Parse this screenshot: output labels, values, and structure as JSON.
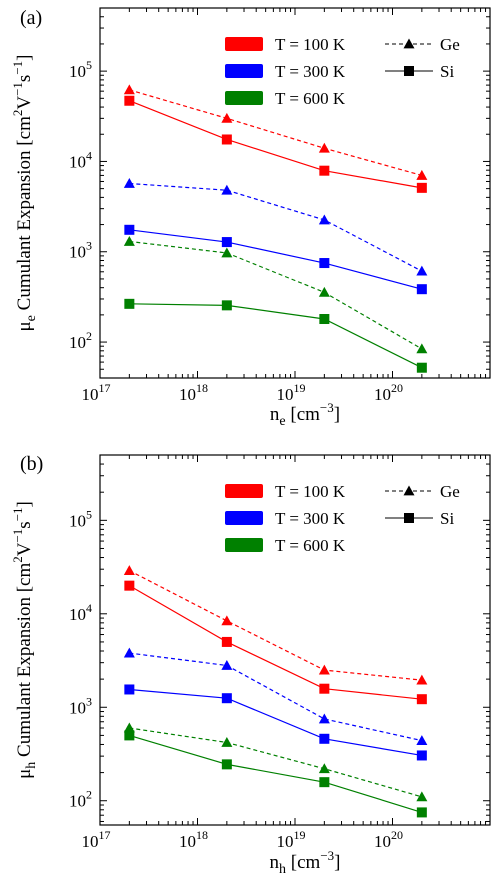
{
  "chart_data": [
    {
      "type": "line",
      "panel_label": "(a)",
      "xlabel_main": "n",
      "xlabel_sub": "e",
      "xlabel_unit_open": "[cm",
      "xlabel_unit_exp": "−3",
      "xlabel_unit_close": "]",
      "ylabel_main": "μ",
      "ylabel_sub": "e",
      "ylabel_text": "Cumulant Expansion [cm",
      "ylabel_exp1": "2",
      "ylabel_mid": "V",
      "ylabel_exp2": "−1",
      "ylabel_mid2": "s",
      "ylabel_exp3": "−1",
      "ylabel_close": "]",
      "x_scale": "log",
      "y_scale": "log",
      "xlim": [
        1e+17,
        1e+21
      ],
      "ylim": [
        40,
        500000
      ],
      "grid": false,
      "x_tick_labels": [
        "10",
        "10",
        "10",
        "10"
      ],
      "x_tick_exps": [
        "17",
        "18",
        "19",
        "20"
      ],
      "x_tick_values": [
        1e+17,
        1e+18,
        1e+19,
        1e+20
      ],
      "y_tick_labels": [
        "10",
        "10",
        "10",
        "10"
      ],
      "y_tick_exps": [
        "2",
        "3",
        "4",
        "5"
      ],
      "y_tick_values": [
        100,
        1000,
        10000,
        100000
      ],
      "x": [
        2e+17,
        2e+18,
        2e+19,
        2e+20
      ],
      "series": [
        {
          "material": "Ge",
          "temperature": "T = 100 K",
          "color": "#ff0000",
          "marker": "triangle",
          "dash": true,
          "values": [
            62000,
            30000,
            14000,
            7000
          ]
        },
        {
          "material": "Si",
          "temperature": "T = 100 K",
          "color": "#ff0000",
          "marker": "square",
          "dash": false,
          "values": [
            47000,
            17500,
            7900,
            5100
          ]
        },
        {
          "material": "Ge",
          "temperature": "T = 300 K",
          "color": "#0000ff",
          "marker": "triangle",
          "dash": true,
          "values": [
            5700,
            4800,
            2250,
            610
          ]
        },
        {
          "material": "Si",
          "temperature": "T = 300 K",
          "color": "#0000ff",
          "marker": "square",
          "dash": false,
          "values": [
            1750,
            1280,
            750,
            385
          ]
        },
        {
          "material": "Ge",
          "temperature": "T = 600 K",
          "color": "#008000",
          "marker": "triangle",
          "dash": true,
          "values": [
            1300,
            970,
            355,
            84
          ]
        },
        {
          "material": "Si",
          "temperature": "T = 600 K",
          "color": "#008000",
          "marker": "square",
          "dash": false,
          "values": [
            265,
            255,
            180,
            52
          ]
        }
      ],
      "legend_colors": [
        {
          "label": "T = 100 K",
          "color": "#ff0000"
        },
        {
          "label": "T = 300 K",
          "color": "#0000ff"
        },
        {
          "label": "T = 600 K",
          "color": "#008000"
        }
      ],
      "legend_markers": [
        {
          "label": "Ge",
          "marker": "triangle",
          "dash": true
        },
        {
          "label": "Si",
          "marker": "square",
          "dash": false
        }
      ],
      "legend_position": "top-right"
    },
    {
      "type": "line",
      "panel_label": "(b)",
      "xlabel_main": "n",
      "xlabel_sub": "h",
      "xlabel_unit_open": "[cm",
      "xlabel_unit_exp": "−3",
      "xlabel_unit_close": "]",
      "ylabel_main": "μ",
      "ylabel_sub": "h",
      "ylabel_text": "Cumulant Expansion [cm",
      "ylabel_exp1": "2",
      "ylabel_mid": "V",
      "ylabel_exp2": "−1",
      "ylabel_mid2": "s",
      "ylabel_exp3": "−1",
      "ylabel_close": "]",
      "x_scale": "log",
      "y_scale": "log",
      "xlim": [
        1e+17,
        1e+21
      ],
      "ylim": [
        55,
        500000
      ],
      "grid": false,
      "x_tick_labels": [
        "10",
        "10",
        "10",
        "10"
      ],
      "x_tick_exps": [
        "17",
        "18",
        "19",
        "20"
      ],
      "x_tick_values": [
        1e+17,
        1e+18,
        1e+19,
        1e+20
      ],
      "y_tick_labels": [
        "10",
        "10",
        "10",
        "10"
      ],
      "y_tick_exps": [
        "2",
        "3",
        "4",
        "5"
      ],
      "y_tick_values": [
        100,
        1000,
        10000,
        100000
      ],
      "x": [
        2e+17,
        2e+18,
        2e+19,
        2e+20
      ],
      "series": [
        {
          "material": "Ge",
          "temperature": "T = 100 K",
          "color": "#ff0000",
          "marker": "triangle",
          "dash": true,
          "values": [
            29000,
            8400,
            2500,
            1950
          ]
        },
        {
          "material": "Si",
          "temperature": "T = 100 K",
          "color": "#ff0000",
          "marker": "square",
          "dash": false,
          "values": [
            20000,
            5000,
            1580,
            1220
          ]
        },
        {
          "material": "Ge",
          "temperature": "T = 300 K",
          "color": "#0000ff",
          "marker": "triangle",
          "dash": true,
          "values": [
            3800,
            2800,
            750,
            440
          ]
        },
        {
          "material": "Si",
          "temperature": "T = 300 K",
          "color": "#0000ff",
          "marker": "square",
          "dash": false,
          "values": [
            1550,
            1250,
            460,
            305
          ]
        },
        {
          "material": "Ge",
          "temperature": "T = 600 K",
          "color": "#008000",
          "marker": "triangle",
          "dash": true,
          "values": [
            600,
            420,
            220,
            110
          ]
        },
        {
          "material": "Si",
          "temperature": "T = 600 K",
          "color": "#008000",
          "marker": "square",
          "dash": false,
          "values": [
            500,
            245,
            158,
            75
          ]
        }
      ],
      "legend_colors": [
        {
          "label": "T = 100 K",
          "color": "#ff0000"
        },
        {
          "label": "T = 300 K",
          "color": "#0000ff"
        },
        {
          "label": "T = 600 K",
          "color": "#008000"
        }
      ],
      "legend_markers": [
        {
          "label": "Ge",
          "marker": "triangle",
          "dash": true
        },
        {
          "label": "Si",
          "marker": "square",
          "dash": false
        }
      ],
      "legend_position": "top-right"
    }
  ]
}
